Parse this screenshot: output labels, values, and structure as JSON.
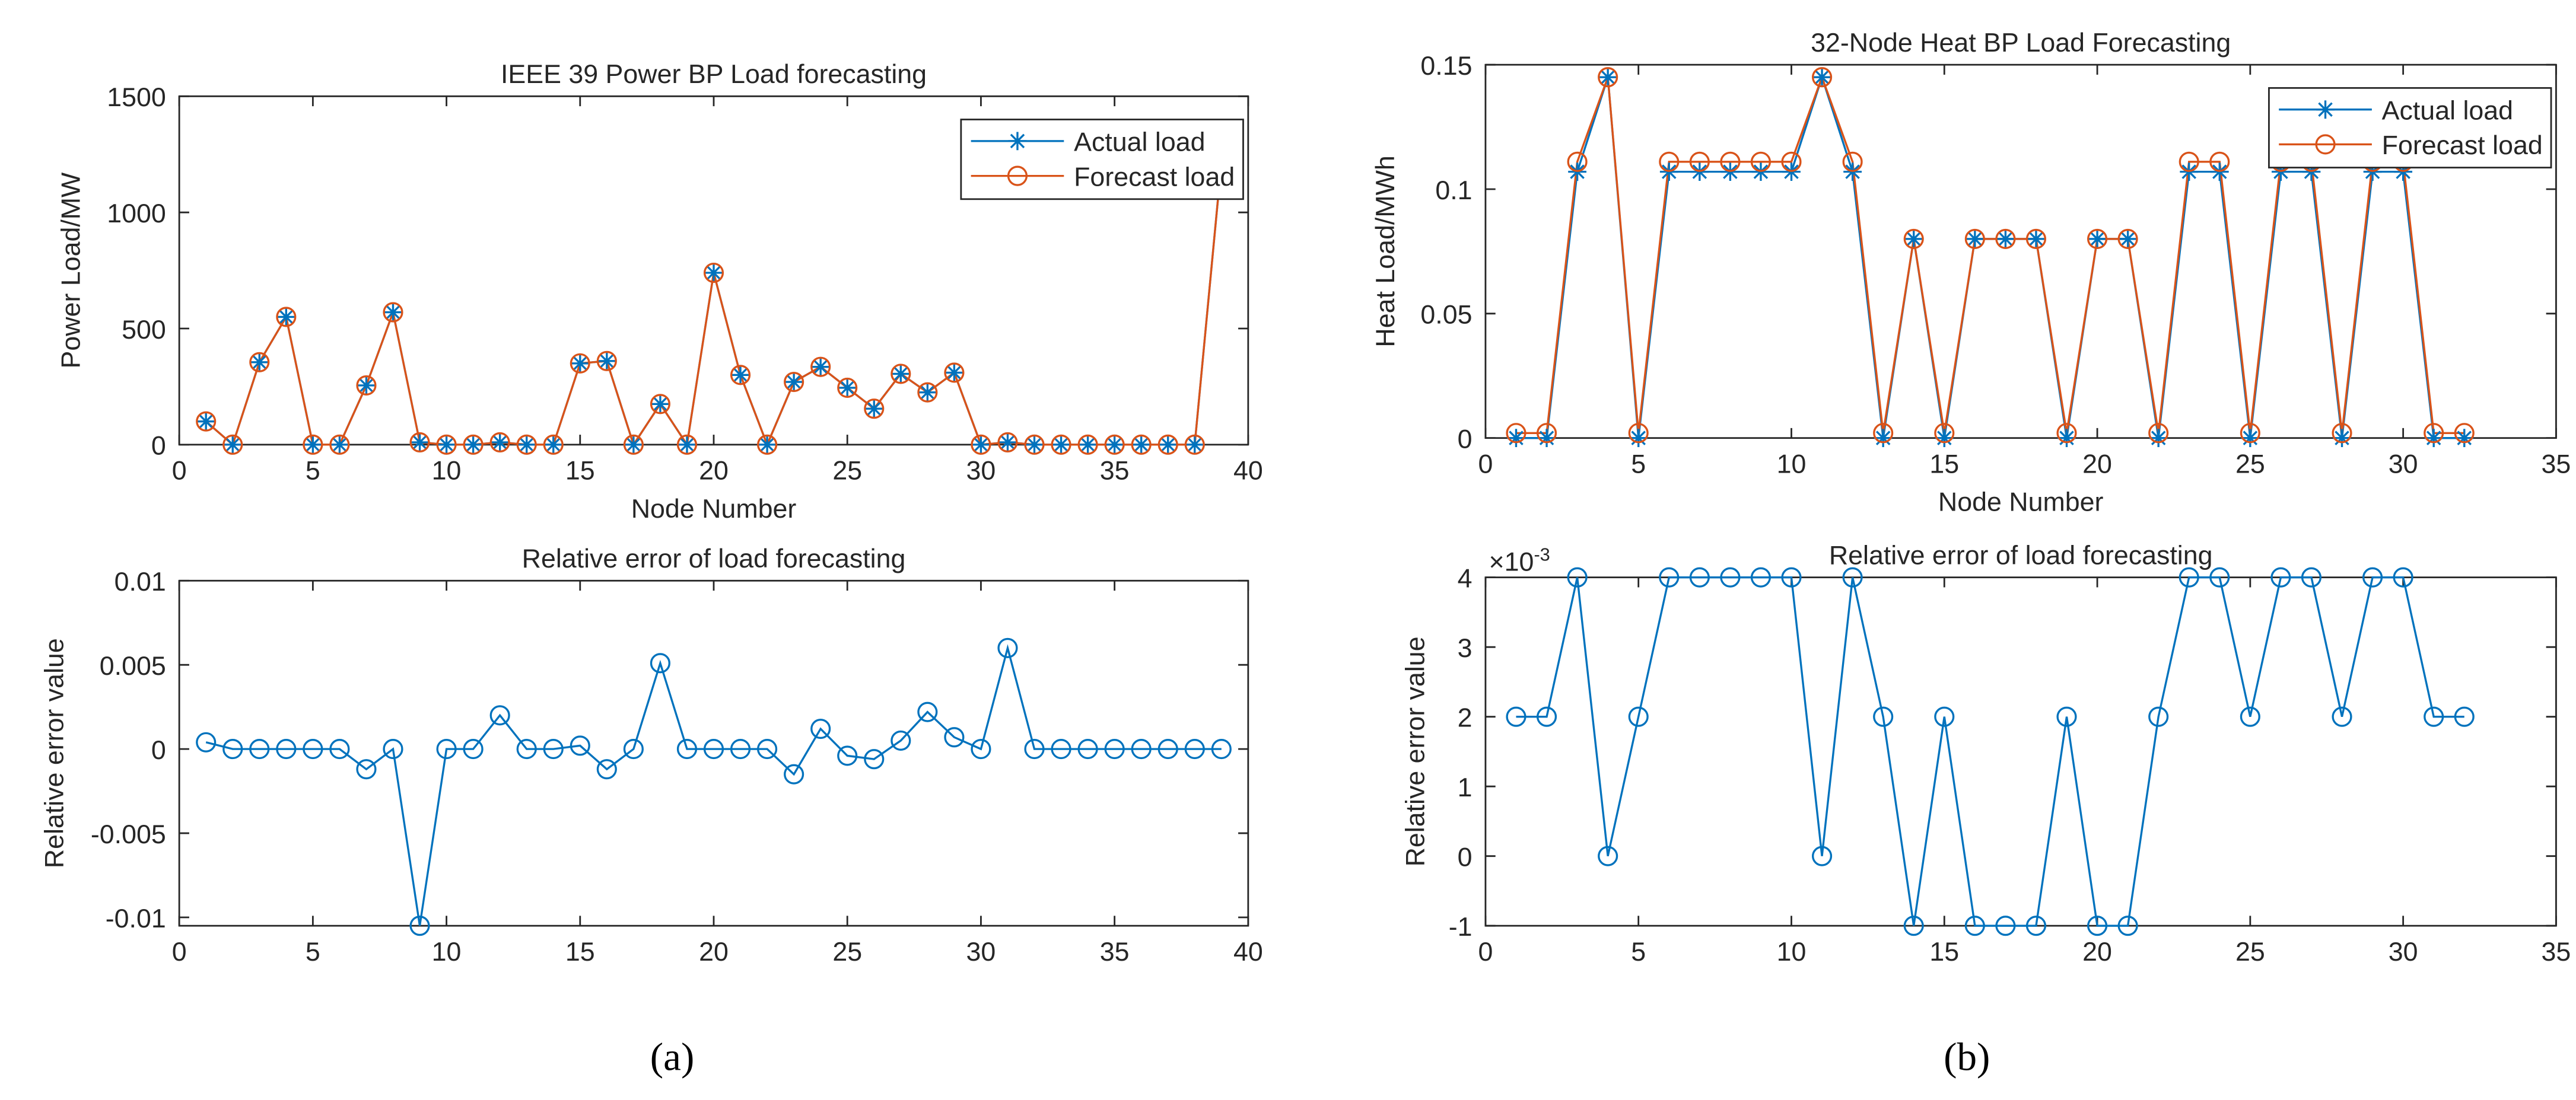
{
  "chart_data": [
    {
      "type": "line",
      "title": "IEEE 39 Power BP Load forecasting",
      "xlabel": "Node Number",
      "ylabel": "Power Load/MW",
      "x": [
        1,
        2,
        3,
        4,
        5,
        6,
        7,
        8,
        9,
        10,
        11,
        12,
        13,
        14,
        15,
        16,
        17,
        18,
        19,
        20,
        21,
        22,
        23,
        24,
        25,
        26,
        27,
        28,
        29,
        30,
        31,
        32,
        33,
        34,
        35,
        36,
        37,
        38,
        39
      ],
      "series": [
        {
          "name": "Actual load",
          "color": "#0072BD",
          "marker": "star",
          "values": [
            100,
            0,
            355,
            550,
            0,
            0,
            255,
            570,
            10,
            0,
            0,
            10,
            0,
            0,
            350,
            360,
            0,
            175,
            0,
            740,
            300,
            0,
            270,
            335,
            245,
            155,
            305,
            225,
            310,
            0,
            10,
            0,
            0,
            0,
            0,
            0,
            0,
            0,
            1215
          ]
        },
        {
          "name": "Forecast load",
          "color": "#D95319",
          "marker": "circle",
          "values": [
            100,
            0,
            355,
            550,
            0,
            0,
            255,
            570,
            10,
            0,
            0,
            10,
            0,
            0,
            350,
            360,
            0,
            175,
            0,
            740,
            300,
            0,
            270,
            335,
            245,
            155,
            305,
            225,
            310,
            0,
            10,
            0,
            0,
            0,
            0,
            0,
            0,
            0,
            1215
          ]
        }
      ],
      "xlim": [
        0,
        40
      ],
      "xticks": [
        0,
        5,
        10,
        15,
        20,
        25,
        30,
        35,
        40
      ],
      "ylim": [
        0,
        1500
      ],
      "yticks": [
        0,
        500,
        1000,
        1500
      ],
      "legend": "northeast"
    },
    {
      "type": "line",
      "title": "Relative error of load forecasting",
      "ylabel": "Relative error value",
      "x": [
        1,
        2,
        3,
        4,
        5,
        6,
        7,
        8,
        9,
        10,
        11,
        12,
        13,
        14,
        15,
        16,
        17,
        18,
        19,
        20,
        21,
        22,
        23,
        24,
        25,
        26,
        27,
        28,
        29,
        30,
        31,
        32,
        33,
        34,
        35,
        36,
        37,
        38,
        39
      ],
      "series": [
        {
          "color": "#0072BD",
          "marker": "circle",
          "values": [
            0.0004,
            0,
            0,
            0,
            0,
            0,
            -0.0012,
            0,
            -0.0105,
            0,
            0,
            0.002,
            0,
            0,
            0.0002,
            -0.0012,
            0,
            0.0051,
            0,
            0,
            0,
            0,
            -0.0015,
            0.0012,
            -0.0004,
            -0.0006,
            0.0005,
            0.0022,
            0.0007,
            0,
            0.006,
            0,
            0,
            0,
            0,
            0,
            0,
            0,
            0
          ]
        }
      ],
      "xlim": [
        0,
        40
      ],
      "xticks": [
        0,
        5,
        10,
        15,
        20,
        25,
        30,
        35,
        40
      ],
      "ylim": [
        -0.0105,
        0.01
      ],
      "yticks": [
        -0.01,
        -0.005,
        0,
        0.005,
        0.01
      ]
    },
    {
      "type": "line",
      "title": "32-Node Heat BP Load Forecasting",
      "xlabel": "Node Number",
      "ylabel": "Heat Load/MWh",
      "x": [
        1,
        2,
        3,
        4,
        5,
        6,
        7,
        8,
        9,
        10,
        11,
        12,
        13,
        14,
        15,
        16,
        17,
        18,
        19,
        20,
        21,
        22,
        23,
        24,
        25,
        26,
        27,
        28,
        29,
        30,
        31,
        32
      ],
      "series": [
        {
          "name": "Actual load",
          "color": "#0072BD",
          "marker": "star",
          "values": [
            0,
            0,
            0.107,
            0.145,
            0,
            0.107,
            0.107,
            0.107,
            0.107,
            0.107,
            0.145,
            0.107,
            0,
            0.08,
            0,
            0.08,
            0.08,
            0.08,
            0,
            0.08,
            0.08,
            0,
            0.107,
            0.107,
            0,
            0.107,
            0.107,
            0,
            0.107,
            0.107,
            0,
            0
          ]
        },
        {
          "name": "Forecast load",
          "color": "#D95319",
          "marker": "circle",
          "values": [
            0.002,
            0.002,
            0.111,
            0.145,
            0.002,
            0.111,
            0.111,
            0.111,
            0.111,
            0.111,
            0.145,
            0.111,
            0.002,
            0.08,
            0.002,
            0.08,
            0.08,
            0.08,
            0.002,
            0.08,
            0.08,
            0.002,
            0.111,
            0.111,
            0.002,
            0.111,
            0.111,
            0.002,
            0.111,
            0.111,
            0.002,
            0.002
          ]
        }
      ],
      "xlim": [
        0,
        35
      ],
      "xticks": [
        0,
        5,
        10,
        15,
        20,
        25,
        30,
        35
      ],
      "ylim": [
        0,
        0.15
      ],
      "yticks": [
        0,
        0.05,
        0.1,
        0.15
      ],
      "legend": "northeast"
    },
    {
      "type": "line",
      "title": "Relative error of load forecasting",
      "ylabel": "Relative error value",
      "y_multiplier": {
        "base": "×10",
        "exponent": "-3"
      },
      "x": [
        1,
        2,
        3,
        4,
        5,
        6,
        7,
        8,
        9,
        10,
        11,
        12,
        13,
        14,
        15,
        16,
        17,
        18,
        19,
        20,
        21,
        22,
        23,
        24,
        25,
        26,
        27,
        28,
        29,
        30,
        31,
        32
      ],
      "series": [
        {
          "color": "#0072BD",
          "marker": "circle",
          "values": [
            2,
            2,
            4,
            0,
            2,
            4,
            4,
            4,
            4,
            4,
            0,
            4,
            2,
            -1,
            2,
            -1,
            -1,
            -1,
            2,
            -1,
            -1,
            2,
            4,
            4,
            2,
            4,
            4,
            2,
            4,
            4,
            2,
            2
          ]
        }
      ],
      "xlim": [
        0,
        35
      ],
      "xticks": [
        0,
        5,
        10,
        15,
        20,
        25,
        30,
        35
      ],
      "ylim": [
        -1,
        4
      ],
      "yticks": [
        -1,
        0,
        1,
        2,
        3,
        4
      ]
    }
  ],
  "captions": [
    "(a)",
    "(b)"
  ]
}
